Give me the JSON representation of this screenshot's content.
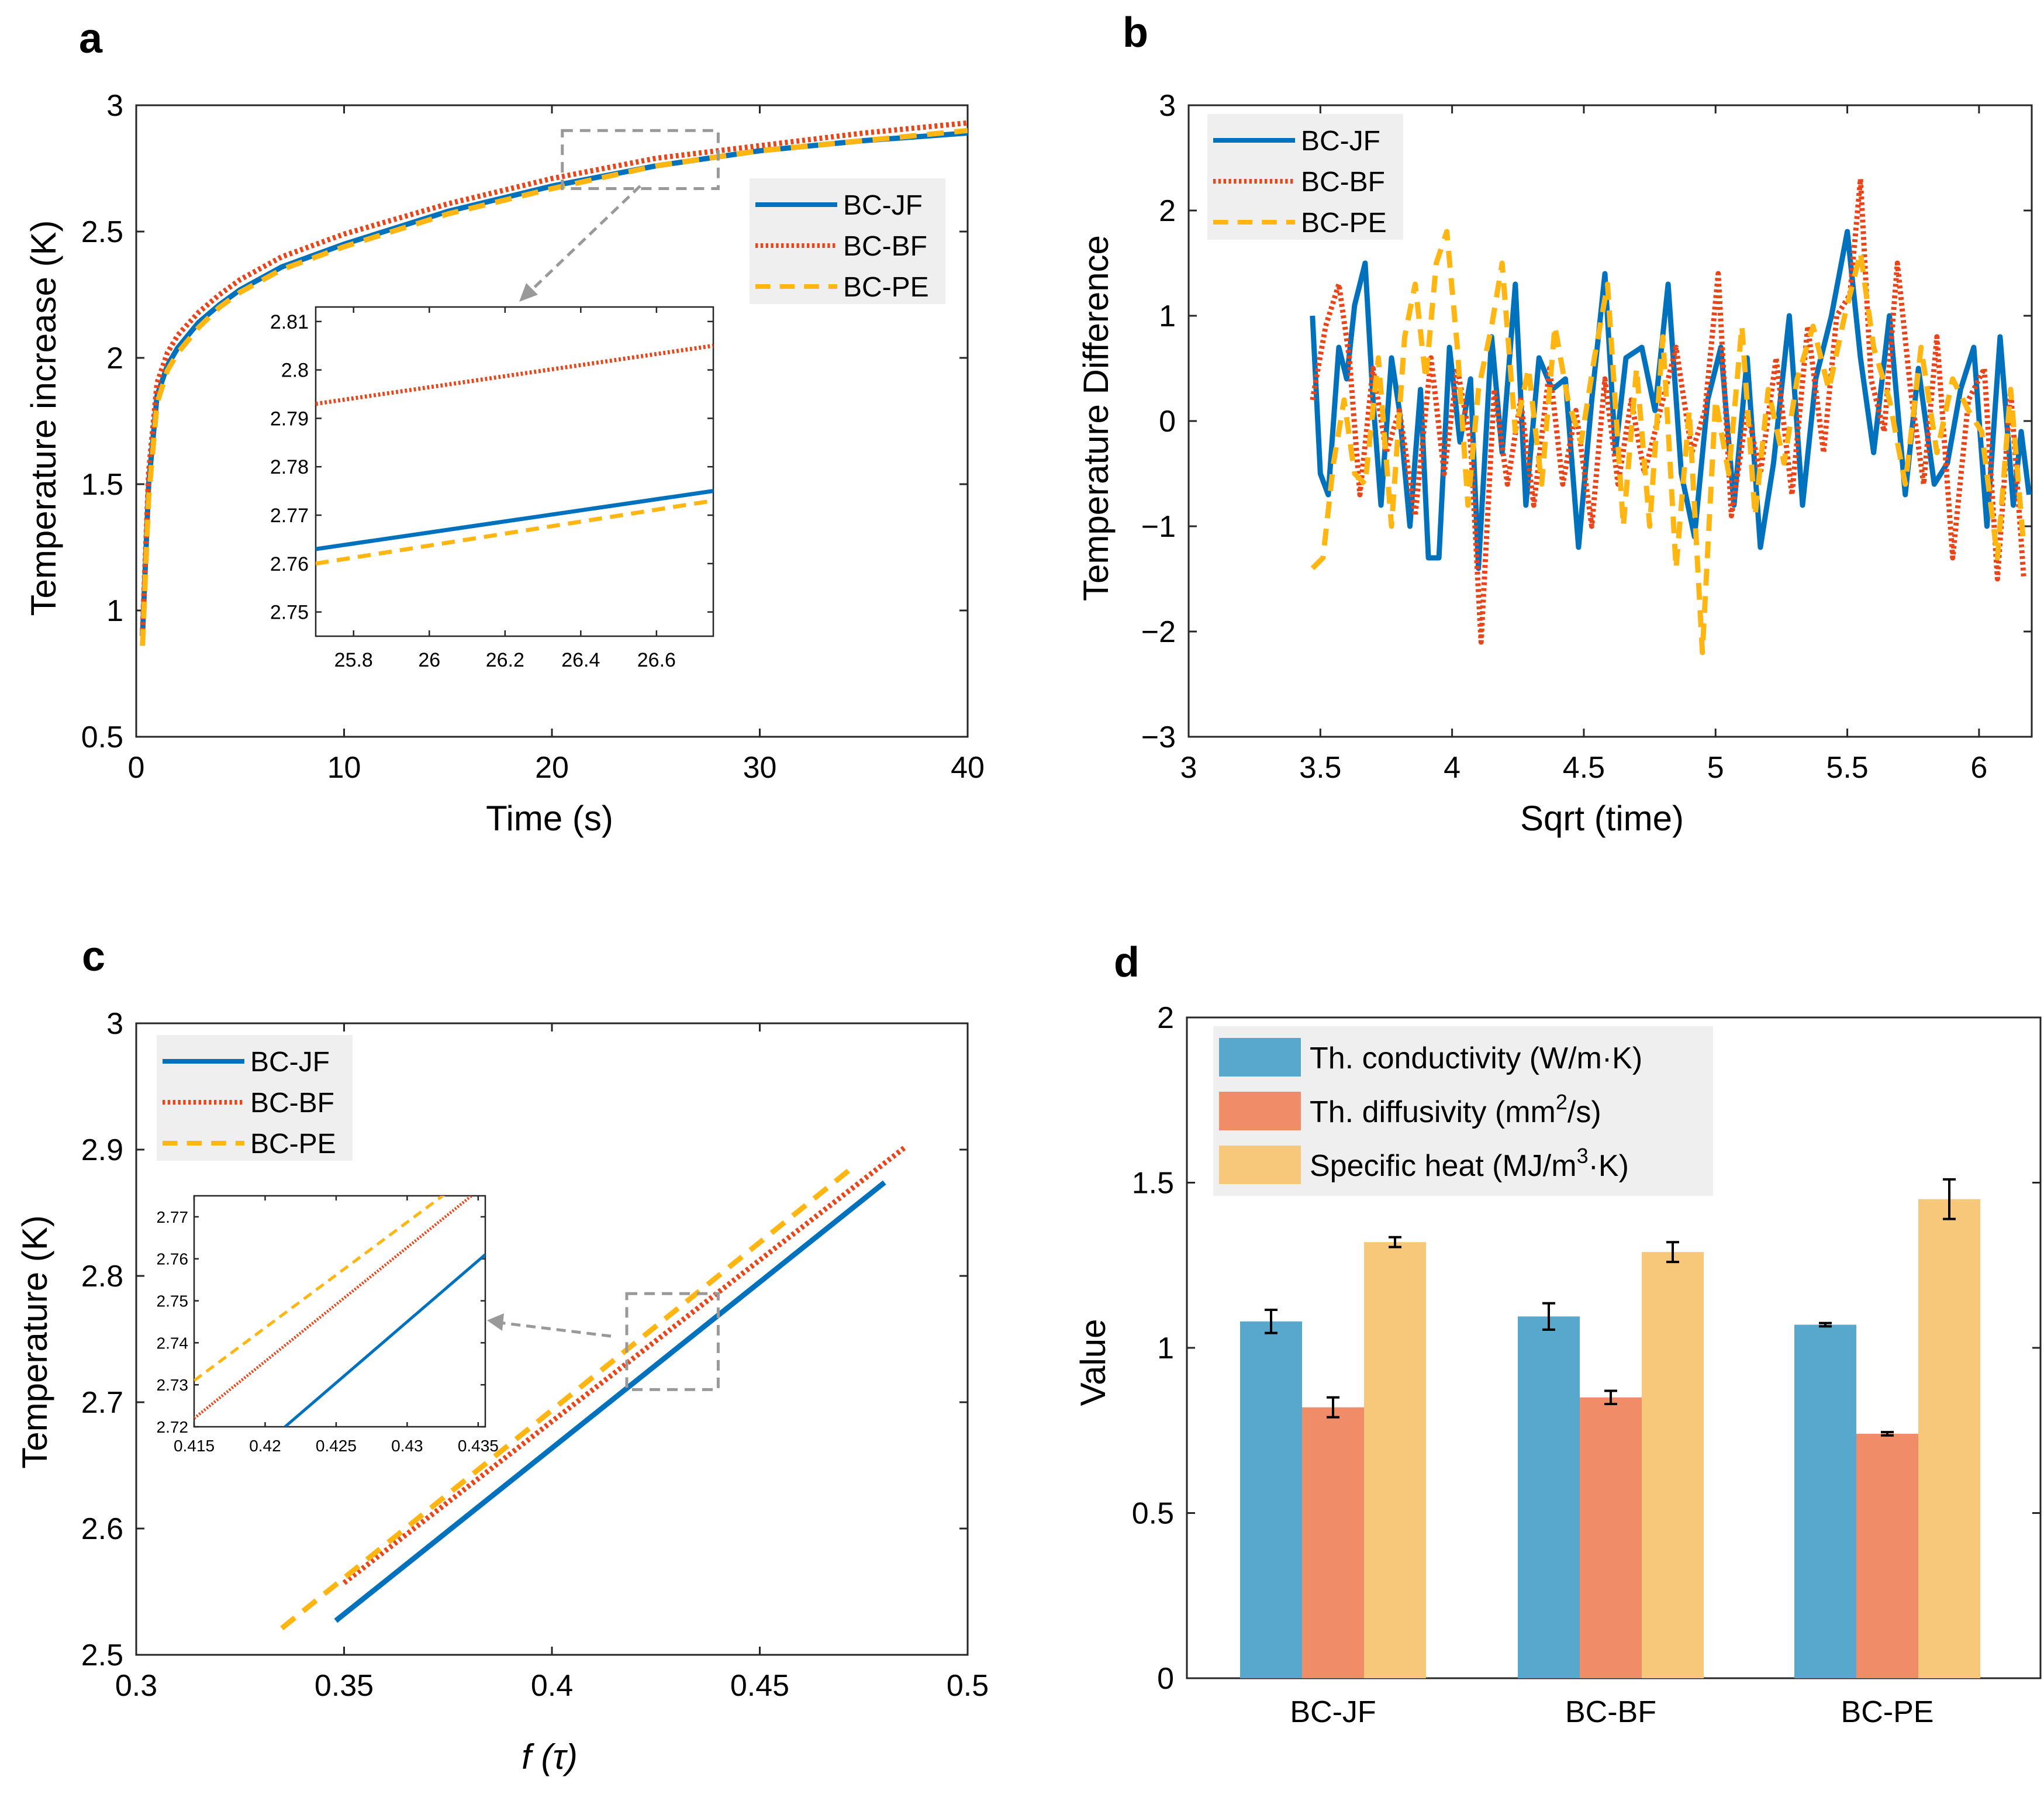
{
  "colors": {
    "jf": "#0072BD",
    "bf": "#E8461A",
    "pe": "#FFB612",
    "bar_k": "#58A7CC",
    "bar_a": "#F08C68",
    "bar_c": "#F7C87A",
    "zoom": "#999999",
    "legend_bg": "#EFEFEF"
  },
  "chart_data": [
    {
      "id": "a",
      "panel_label": "a",
      "type": "line",
      "xlabel": "Time (s)",
      "ylabel": "Temperature increase (K)",
      "xlim": [
        0,
        40
      ],
      "ylim": [
        0.5,
        3
      ],
      "xticks": [
        "0",
        "10",
        "20",
        "30",
        "40"
      ],
      "yticks": [
        "0.5",
        "1",
        "1.5",
        "2",
        "2.5",
        "3"
      ],
      "legend_position": "right",
      "series": [
        {
          "name": "BC-JF",
          "style": "solid",
          "x": [
            0.3,
            0.6,
            1,
            1.5,
            2,
            3,
            4,
            5,
            7,
            10,
            15,
            20,
            25,
            30,
            35,
            40
          ],
          "values": [
            0.9,
            1.5,
            1.85,
            1.97,
            2.04,
            2.14,
            2.21,
            2.27,
            2.36,
            2.45,
            2.58,
            2.68,
            2.76,
            2.82,
            2.86,
            2.89
          ]
        },
        {
          "name": "BC-BF",
          "style": "dotted",
          "x": [
            0.3,
            0.6,
            1,
            1.5,
            2,
            3,
            4,
            5,
            7,
            10,
            15,
            20,
            25,
            30,
            35,
            40
          ],
          "values": [
            0.92,
            1.55,
            1.9,
            2.02,
            2.09,
            2.18,
            2.25,
            2.31,
            2.4,
            2.49,
            2.61,
            2.71,
            2.79,
            2.84,
            2.89,
            2.93
          ]
        },
        {
          "name": "BC-PE",
          "style": "dashed",
          "x": [
            0.3,
            0.6,
            1,
            1.5,
            2,
            3,
            4,
            5,
            7,
            10,
            15,
            20,
            25,
            30,
            35,
            40
          ],
          "values": [
            0.86,
            1.45,
            1.82,
            1.95,
            2.02,
            2.12,
            2.2,
            2.26,
            2.35,
            2.44,
            2.57,
            2.67,
            2.76,
            2.82,
            2.86,
            2.9
          ]
        }
      ],
      "inset": {
        "xlim": [
          25.7,
          26.75
        ],
        "ylim": [
          2.745,
          2.813
        ],
        "xticks": [
          "25.8",
          "26",
          "26.2",
          "26.4",
          "26.6"
        ],
        "yticks": [
          "2.75",
          "2.76",
          "2.77",
          "2.78",
          "2.79",
          "2.8",
          "2.81"
        ],
        "series": [
          {
            "name": "BC-JF",
            "style": "solid",
            "x": [
              25.7,
              26.75
            ],
            "values": [
              2.763,
              2.775
            ]
          },
          {
            "name": "BC-BF",
            "style": "dotted",
            "x": [
              25.7,
              26.75
            ],
            "values": [
              2.793,
              2.805
            ]
          },
          {
            "name": "BC-PE",
            "style": "dashed",
            "x": [
              25.7,
              26.75
            ],
            "values": [
              2.76,
              2.773
            ]
          }
        ]
      },
      "zoom_box": {
        "x": [
          20.5,
          28
        ],
        "y": [
          2.67,
          2.9
        ]
      }
    },
    {
      "id": "b",
      "panel_label": "b",
      "type": "line",
      "xlabel": "Sqrt (time)",
      "ylabel": "Temperature Difference",
      "xlim": [
        3,
        6.2
      ],
      "ylim": [
        -3,
        3
      ],
      "xticks": [
        "3",
        "3.5",
        "4",
        "4.5",
        "5",
        "5.5",
        "6"
      ],
      "yticks": [
        "−3",
        "−2",
        "−1",
        "0",
        "1",
        "2",
        "3"
      ],
      "legend_position": "top-left",
      "series": [
        {
          "name": "BC-JF",
          "style": "solid",
          "x": [
            3.47,
            3.5,
            3.53,
            3.57,
            3.6,
            3.63,
            3.67,
            3.7,
            3.73,
            3.77,
            3.8,
            3.84,
            3.88,
            3.91,
            3.95,
            3.99,
            4.03,
            4.07,
            4.1,
            4.15,
            4.19,
            4.24,
            4.28,
            4.33,
            4.38,
            4.43,
            4.48,
            4.53,
            4.58,
            4.62,
            4.66,
            4.72,
            4.77,
            4.82,
            4.87,
            4.92,
            4.97,
            5.02,
            5.07,
            5.12,
            5.17,
            5.22,
            5.28,
            5.33,
            5.38,
            5.44,
            5.5,
            5.55,
            5.6,
            5.66,
            5.72,
            5.77,
            5.83,
            5.88,
            5.93,
            5.98,
            6.03,
            6.08,
            6.13,
            6.16,
            6.19
          ],
          "values": [
            1.0,
            -0.5,
            -0.7,
            0.7,
            0.4,
            1.1,
            1.5,
            0.2,
            -0.8,
            0.6,
            0.1,
            -1.0,
            0.3,
            -1.3,
            -1.3,
            0.7,
            -0.2,
            0.4,
            -1.4,
            0.8,
            -0.3,
            1.3,
            -0.8,
            0.6,
            0.3,
            0.4,
            -1.2,
            0.2,
            1.4,
            -0.3,
            0.6,
            0.7,
            0.1,
            1.3,
            -0.5,
            -1.1,
            0.2,
            0.7,
            -0.8,
            0.6,
            -1.2,
            -0.4,
            1.0,
            -0.8,
            0.4,
            1.0,
            1.8,
            0.6,
            -0.3,
            1.0,
            -0.7,
            0.5,
            -0.6,
            -0.4,
            0.3,
            0.7,
            -1.0,
            0.8,
            -0.8,
            -0.1,
            -0.7
          ]
        },
        {
          "name": "BC-BF",
          "style": "dotted",
          "x": [
            3.47,
            3.52,
            3.57,
            3.61,
            3.65,
            3.7,
            3.75,
            3.8,
            3.86,
            3.92,
            3.97,
            4.02,
            4.07,
            4.11,
            4.16,
            4.21,
            4.26,
            4.31,
            4.37,
            4.42,
            4.47,
            4.53,
            4.58,
            4.63,
            4.68,
            4.73,
            4.79,
            4.85,
            4.91,
            4.96,
            5.01,
            5.06,
            5.12,
            5.17,
            5.23,
            5.29,
            5.35,
            5.41,
            5.46,
            5.51,
            5.55,
            5.59,
            5.64,
            5.69,
            5.74,
            5.79,
            5.84,
            5.9,
            5.96,
            6.02,
            6.07,
            6.12,
            6.17
          ],
          "values": [
            0.2,
            0.9,
            1.3,
            0.6,
            -0.7,
            0.5,
            -0.3,
            0.1,
            -0.9,
            0.6,
            -0.5,
            0.5,
            -0.2,
            -2.1,
            0.3,
            -0.6,
            0.2,
            -0.8,
            0.5,
            -0.6,
            0.1,
            -1.0,
            0.4,
            -0.6,
            0.2,
            -0.5,
            0.1,
            0.7,
            -0.3,
            0.1,
            1.4,
            -0.9,
            0.1,
            -0.5,
            0.6,
            -0.7,
            0.9,
            -0.3,
            1.0,
            1.2,
            2.3,
            0.4,
            -0.1,
            1.5,
            0.3,
            -0.6,
            0.8,
            -1.3,
            0.2,
            0.5,
            -1.5,
            0.3,
            -1.5
          ]
        },
        {
          "name": "BC-PE",
          "style": "dashed",
          "x": [
            3.47,
            3.51,
            3.55,
            3.59,
            3.63,
            3.67,
            3.72,
            3.77,
            3.82,
            3.86,
            3.9,
            3.94,
            3.98,
            4.02,
            4.06,
            4.1,
            4.15,
            4.19,
            4.24,
            4.29,
            4.34,
            4.39,
            4.44,
            4.49,
            4.54,
            4.59,
            4.65,
            4.7,
            4.75,
            4.8,
            4.85,
            4.9,
            4.95,
            5.0,
            5.05,
            5.1,
            5.15,
            5.2,
            5.26,
            5.31,
            5.37,
            5.43,
            5.49,
            5.55,
            5.6,
            5.66,
            5.72,
            5.78,
            5.84,
            5.9,
            5.96,
            6.01,
            6.07,
            6.12,
            6.17
          ],
          "values": [
            -1.4,
            -1.3,
            -0.4,
            0.2,
            -0.5,
            -0.6,
            0.6,
            -1.0,
            0.8,
            1.3,
            0.4,
            1.5,
            1.8,
            0.7,
            -0.8,
            0.3,
            0.9,
            1.5,
            -0.1,
            0.5,
            -0.6,
            0.9,
            0.2,
            -0.2,
            0.6,
            1.3,
            -1.0,
            0.5,
            -1.0,
            0.8,
            -1.4,
            0.1,
            -2.2,
            0.2,
            -0.5,
            0.9,
            -0.9,
            0.3,
            -0.4,
            0.4,
            0.9,
            0.3,
            1.0,
            1.6,
            0.7,
            0.2,
            -0.6,
            0.7,
            -0.3,
            0.4,
            0.1,
            -0.1,
            -1.3,
            0.3,
            -1.2
          ]
        }
      ]
    },
    {
      "id": "c",
      "panel_label": "c",
      "type": "line",
      "xlabel": "f (τ)",
      "ylabel": "Temperature (K)",
      "xlim": [
        0.3,
        0.5
      ],
      "ylim": [
        2.5,
        3
      ],
      "xticks": [
        "0.3",
        "0.35",
        "0.4",
        "0.45",
        "0.5"
      ],
      "yticks": [
        "2.5",
        "2.6",
        "2.7",
        "2.8",
        "2.9",
        "3"
      ],
      "legend_position": "top-left",
      "series": [
        {
          "name": "BC-JF",
          "style": "solid",
          "x": [
            0.348,
            0.48
          ],
          "values": [
            2.527,
            2.874
          ]
        },
        {
          "name": "BC-BF",
          "style": "dotted",
          "x": [
            0.35,
            0.485
          ],
          "values": [
            2.557,
            2.902
          ]
        },
        {
          "name": "BC-PE",
          "style": "dashed",
          "x": [
            0.335,
            0.472
          ],
          "values": [
            2.521,
            2.885
          ]
        }
      ],
      "inset": {
        "xlim": [
          0.415,
          0.4355
        ],
        "ylim": [
          2.72,
          2.775
        ],
        "xticks": [
          "0.415",
          "0.42",
          "0.425",
          "0.43",
          "0.435"
        ],
        "yticks": [
          "2.72",
          "2.73",
          "2.74",
          "2.75",
          "2.76",
          "2.77"
        ],
        "series": [
          {
            "name": "BC-JF",
            "style": "solid",
            "x": [
              0.4214,
              0.4355
            ],
            "values": [
              2.72,
              2.761
            ]
          },
          {
            "name": "BC-BF",
            "style": "dotted",
            "x": [
              0.415,
              0.4349
            ],
            "values": [
              2.722,
              2.776
            ]
          },
          {
            "name": "BC-PE",
            "style": "dashed",
            "x": [
              0.415,
              0.4329
            ],
            "values": [
              2.731,
              2.776
            ]
          }
        ]
      },
      "zoom_box": {
        "x": [
          0.418,
          0.44
        ],
        "y": [
          2.71,
          2.786
        ]
      }
    },
    {
      "id": "d",
      "panel_label": "d",
      "type": "bar",
      "xlabel": "",
      "ylabel": "Value",
      "ylim": [
        0,
        2
      ],
      "yticks": [
        "0",
        "0.5",
        "1",
        "1.5",
        "2"
      ],
      "categories": [
        "BC-JF",
        "BC-BF",
        "BC-PE"
      ],
      "legend_position": "top-left",
      "series": [
        {
          "name": "Th. conductivity (W/m·K)",
          "values": [
            1.08,
            1.095,
            1.07
          ],
          "errors": [
            0.035,
            0.04,
            0.005
          ]
        },
        {
          "name": "Th. diffusivity (mm²/s)",
          "values": [
            0.82,
            0.85,
            0.74
          ],
          "errors": [
            0.03,
            0.02,
            0.005
          ]
        },
        {
          "name": "Specific heat (MJ/m³·K)",
          "values": [
            1.32,
            1.29,
            1.45
          ],
          "errors": [
            0.015,
            0.03,
            0.06
          ]
        }
      ],
      "legend_text": [
        {
          "main": "Th. conductivity (W/m·K)"
        },
        {
          "pre": "Th. diffusivity (mm",
          "sup": "2",
          "post": "/s)"
        },
        {
          "pre": "Specific heat (MJ/m",
          "sup": "3",
          "post": "·K)"
        }
      ]
    }
  ]
}
